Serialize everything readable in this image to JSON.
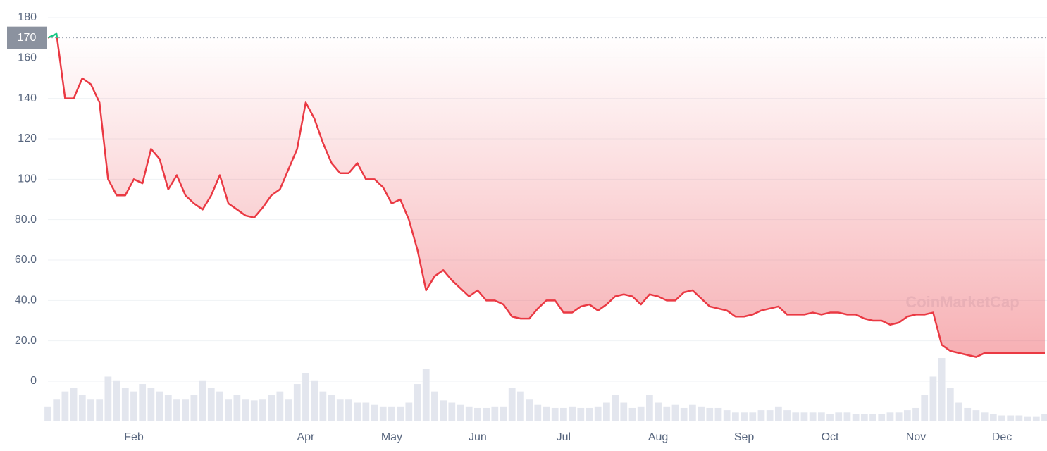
{
  "chart_data": {
    "type": "line",
    "watermark": "CoinMarketCap",
    "baseline": 170,
    "categories": [
      null,
      null,
      null,
      null,
      null,
      null,
      null,
      null,
      null,
      null,
      "Feb",
      null,
      null,
      null,
      null,
      null,
      null,
      null,
      null,
      null,
      null,
      null,
      null,
      null,
      null,
      null,
      null,
      null,
      null,
      null,
      "Apr",
      null,
      null,
      null,
      null,
      null,
      null,
      null,
      null,
      null,
      "May",
      null,
      null,
      null,
      null,
      null,
      null,
      null,
      null,
      null,
      "Jun",
      null,
      null,
      null,
      null,
      null,
      null,
      null,
      null,
      null,
      "Jul",
      null,
      null,
      null,
      null,
      null,
      null,
      null,
      null,
      null,
      null,
      "Aug",
      null,
      null,
      null,
      null,
      null,
      null,
      null,
      null,
      null,
      "Sep",
      null,
      null,
      null,
      null,
      null,
      null,
      null,
      null,
      null,
      "Oct",
      null,
      null,
      null,
      null,
      null,
      null,
      null,
      null,
      null,
      "Nov",
      null,
      null,
      null,
      null,
      null,
      null,
      null,
      null,
      null,
      "Dec",
      null,
      null,
      null,
      null,
      null
    ],
    "series": [
      {
        "color": "#ea3943",
        "up_color": "#16c784",
        "values": [
          170,
          172,
          140,
          140,
          150,
          147,
          138,
          100,
          92,
          92,
          100,
          98,
          115,
          110,
          95,
          102,
          92,
          88,
          85,
          92,
          102,
          88,
          85,
          82,
          81,
          86,
          92,
          95,
          105,
          115,
          138,
          130,
          118,
          108,
          103,
          103,
          108,
          100,
          100,
          96,
          88,
          90,
          80,
          65,
          45,
          52,
          55,
          50,
          46,
          42,
          45,
          40,
          40,
          38,
          32,
          31,
          31,
          36,
          40,
          40,
          34,
          34,
          37,
          38,
          35,
          38,
          42,
          43,
          42,
          38,
          43,
          42,
          40,
          40,
          44,
          45,
          41,
          37,
          36,
          35,
          32,
          32,
          33,
          35,
          36,
          37,
          33,
          33,
          33,
          34,
          33,
          34,
          34,
          33,
          33,
          31,
          30,
          30,
          28,
          29,
          32,
          33,
          33,
          34,
          18,
          15,
          14,
          13,
          12,
          14,
          14,
          14,
          14,
          14,
          14,
          14,
          14
        ]
      }
    ],
    "volume": [
      20,
      30,
      40,
      45,
      35,
      30,
      30,
      60,
      55,
      45,
      40,
      50,
      45,
      40,
      35,
      30,
      30,
      35,
      55,
      45,
      40,
      30,
      35,
      30,
      28,
      30,
      35,
      40,
      30,
      50,
      65,
      55,
      40,
      35,
      30,
      30,
      25,
      25,
      22,
      20,
      20,
      20,
      25,
      50,
      70,
      40,
      28,
      25,
      22,
      20,
      18,
      18,
      20,
      20,
      45,
      40,
      30,
      22,
      20,
      18,
      18,
      20,
      18,
      18,
      20,
      25,
      35,
      25,
      18,
      20,
      35,
      25,
      20,
      22,
      18,
      22,
      20,
      18,
      18,
      15,
      12,
      12,
      12,
      15,
      15,
      20,
      15,
      12,
      12,
      12,
      12,
      10,
      12,
      12,
      10,
      10,
      10,
      10,
      12,
      12,
      15,
      18,
      35,
      60,
      85,
      45,
      25,
      18,
      15,
      12,
      10,
      8,
      8,
      8,
      6,
      6,
      10
    ],
    "volume_color": "#e3e6ee",
    "ylim": [
      0,
      180
    ],
    "yticks": [
      0,
      {
        "value": 20,
        "label": "20.0"
      },
      {
        "value": 40,
        "label": "40.0"
      },
      {
        "value": 60,
        "label": "60.0"
      },
      {
        "value": 80,
        "label": "80.0"
      },
      100,
      120,
      140,
      160,
      180
    ],
    "grid": true
  }
}
